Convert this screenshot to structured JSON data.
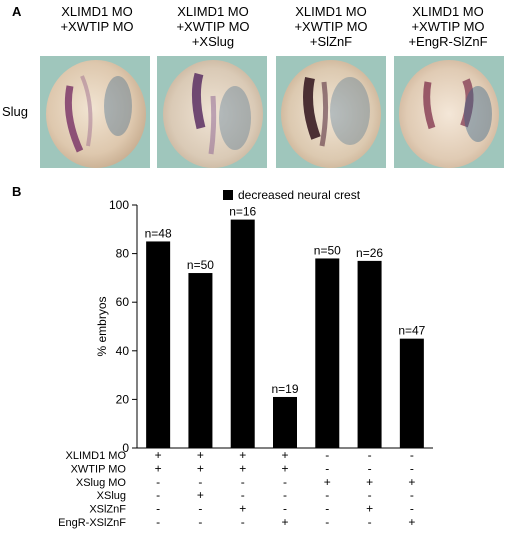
{
  "panel_a": {
    "letter": "A",
    "row_label": "Slug",
    "conditions": [
      {
        "lines": [
          "XLIMD1 MO",
          "+XWTIP MO"
        ]
      },
      {
        "lines": [
          "XLIMD1 MO",
          "+XWTIP MO",
          "+XSlug"
        ]
      },
      {
        "lines": [
          "XLIMD1 MO",
          "+XWTIP MO",
          "+SlZnF"
        ]
      },
      {
        "lines": [
          "XLIMD1 MO",
          "+XWTIP MO",
          "+EngR-SlZnF"
        ]
      }
    ]
  },
  "panel_b": {
    "letter": "B",
    "chart_data": {
      "type": "bar",
      "legend": "decreased neural crest",
      "ylabel": "% embryos",
      "ylim": [
        0,
        100
      ],
      "yticks": [
        0,
        20,
        40,
        60,
        80,
        100
      ],
      "values": [
        85,
        72,
        94,
        21,
        78,
        77,
        45
      ],
      "n_labels": [
        "n=48",
        "n=50",
        "n=16",
        "n=19",
        "n=50",
        "n=26",
        "n=47"
      ],
      "bar_color": "#000000",
      "condition_rows": [
        {
          "label": "XLIMD1 MO",
          "marks": [
            "+",
            "+",
            "+",
            "+",
            "-",
            "-",
            "-"
          ]
        },
        {
          "label": "XWTIP MO",
          "marks": [
            "+",
            "+",
            "+",
            "+",
            "-",
            "-",
            "-"
          ]
        },
        {
          "label": "XSlug MO",
          "marks": [
            "-",
            "-",
            "-",
            "-",
            "+",
            "+",
            "+"
          ]
        },
        {
          "label": "XSlug",
          "marks": [
            "-",
            "+",
            "-",
            "-",
            "-",
            "-",
            "-"
          ]
        },
        {
          "label": "XSlZnF",
          "marks": [
            "-",
            "-",
            "+",
            "-",
            "-",
            "+",
            "-"
          ]
        },
        {
          "label": "EngR-XSlZnF",
          "marks": [
            "-",
            "-",
            "-",
            "+",
            "-",
            "-",
            "+"
          ]
        }
      ]
    }
  }
}
